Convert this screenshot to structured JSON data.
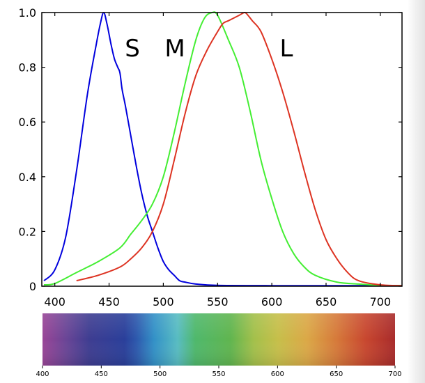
{
  "chart_data": {
    "type": "line",
    "title": "",
    "xlabel": "",
    "ylabel": "",
    "xlim": [
      388,
      720
    ],
    "ylim": [
      0,
      1.0
    ],
    "grid": false,
    "x_ticks": [
      "400",
      "450",
      "500",
      "550",
      "600",
      "650",
      "700"
    ],
    "y_ticks": [
      "0",
      "0.2",
      "0.4",
      "0.6",
      "0.8",
      "1.0"
    ],
    "series": [
      {
        "name": "S",
        "color": "#0000dd",
        "points": [
          [
            390,
            0.02
          ],
          [
            400,
            0.06
          ],
          [
            410,
            0.18
          ],
          [
            420,
            0.42
          ],
          [
            430,
            0.7
          ],
          [
            438,
            0.88
          ],
          [
            442,
            0.96
          ],
          [
            445,
            1.0
          ],
          [
            448,
            0.96
          ],
          [
            452,
            0.88
          ],
          [
            455,
            0.83
          ],
          [
            458,
            0.8
          ],
          [
            460,
            0.78
          ],
          [
            462,
            0.72
          ],
          [
            465,
            0.66
          ],
          [
            470,
            0.55
          ],
          [
            475,
            0.44
          ],
          [
            480,
            0.34
          ],
          [
            485,
            0.26
          ],
          [
            490,
            0.2
          ],
          [
            495,
            0.14
          ],
          [
            500,
            0.09
          ],
          [
            505,
            0.06
          ],
          [
            510,
            0.04
          ],
          [
            515,
            0.02
          ],
          [
            520,
            0.015
          ],
          [
            530,
            0.008
          ],
          [
            550,
            0.003
          ],
          [
            600,
            0.002
          ],
          [
            720,
            0.002
          ]
        ]
      },
      {
        "name": "M",
        "color": "#44ee33",
        "points": [
          [
            390,
            0.005
          ],
          [
            400,
            0.01
          ],
          [
            420,
            0.05
          ],
          [
            440,
            0.09
          ],
          [
            460,
            0.14
          ],
          [
            470,
            0.19
          ],
          [
            480,
            0.24
          ],
          [
            490,
            0.3
          ],
          [
            500,
            0.4
          ],
          [
            510,
            0.56
          ],
          [
            520,
            0.74
          ],
          [
            530,
            0.9
          ],
          [
            538,
            0.98
          ],
          [
            545,
            1.0
          ],
          [
            550,
            0.99
          ],
          [
            560,
            0.9
          ],
          [
            570,
            0.8
          ],
          [
            580,
            0.64
          ],
          [
            590,
            0.46
          ],
          [
            600,
            0.32
          ],
          [
            610,
            0.2
          ],
          [
            620,
            0.12
          ],
          [
            630,
            0.07
          ],
          [
            640,
            0.04
          ],
          [
            660,
            0.015
          ],
          [
            680,
            0.008
          ],
          [
            700,
            0.003
          ],
          [
            720,
            0.002
          ]
        ]
      },
      {
        "name": "L",
        "color": "#dd3322",
        "points": [
          [
            420,
            0.02
          ],
          [
            440,
            0.04
          ],
          [
            460,
            0.07
          ],
          [
            470,
            0.1
          ],
          [
            480,
            0.14
          ],
          [
            490,
            0.2
          ],
          [
            500,
            0.3
          ],
          [
            510,
            0.46
          ],
          [
            520,
            0.63
          ],
          [
            530,
            0.77
          ],
          [
            540,
            0.86
          ],
          [
            550,
            0.93
          ],
          [
            555,
            0.96
          ],
          [
            560,
            0.97
          ],
          [
            565,
            0.98
          ],
          [
            570,
            0.99
          ],
          [
            575,
            1.0
          ],
          [
            578,
            0.99
          ],
          [
            582,
            0.97
          ],
          [
            590,
            0.93
          ],
          [
            600,
            0.83
          ],
          [
            610,
            0.71
          ],
          [
            620,
            0.57
          ],
          [
            630,
            0.42
          ],
          [
            640,
            0.28
          ],
          [
            650,
            0.17
          ],
          [
            660,
            0.1
          ],
          [
            670,
            0.05
          ],
          [
            680,
            0.02
          ],
          [
            700,
            0.005
          ],
          [
            720,
            0.002
          ]
        ]
      }
    ],
    "spectrum_bar": {
      "ticks": [
        "400",
        "450",
        "500",
        "550",
        "600",
        "650",
        "700"
      ],
      "range": [
        400,
        700
      ],
      "stops": [
        {
          "nm": 400,
          "color": "#994597"
        },
        {
          "nm": 420,
          "color": "#6a4596"
        },
        {
          "nm": 440,
          "color": "#3e3d91"
        },
        {
          "nm": 470,
          "color": "#2a3f9a"
        },
        {
          "nm": 480,
          "color": "#2d59ad"
        },
        {
          "nm": 495,
          "color": "#3391c7"
        },
        {
          "nm": 515,
          "color": "#58bcc2"
        },
        {
          "nm": 530,
          "color": "#4fb86c"
        },
        {
          "nm": 560,
          "color": "#60b54f"
        },
        {
          "nm": 580,
          "color": "#a3c04b"
        },
        {
          "nm": 600,
          "color": "#c6bf4a"
        },
        {
          "nm": 625,
          "color": "#dba847"
        },
        {
          "nm": 650,
          "color": "#d67a3a"
        },
        {
          "nm": 675,
          "color": "#c8472f"
        },
        {
          "nm": 700,
          "color": "#a82b2b"
        }
      ]
    }
  }
}
